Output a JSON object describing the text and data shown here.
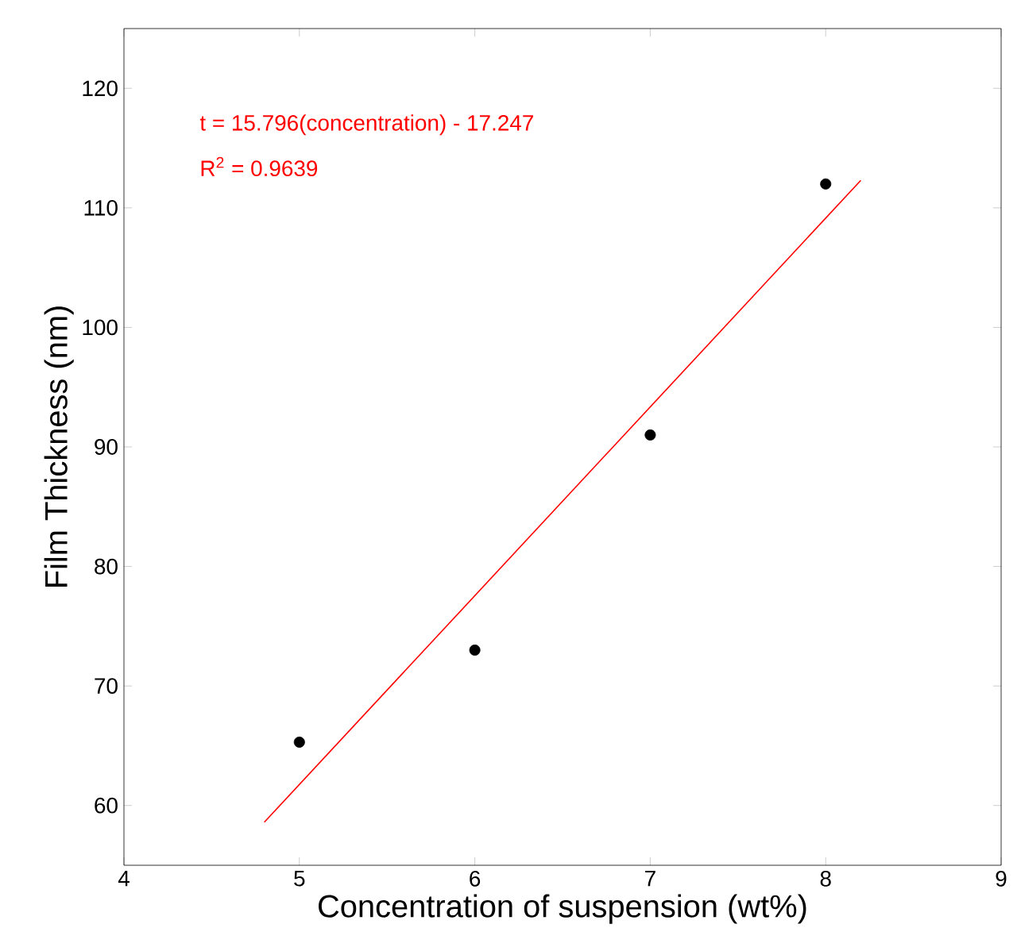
{
  "chart_data": {
    "type": "scatter",
    "xlabel": "Concentration of suspension (wt%)",
    "ylabel": "Film Thickness (nm)",
    "xlim": [
      4,
      9
    ],
    "ylim": [
      55,
      125
    ],
    "xticks": [
      4,
      5,
      6,
      7,
      8,
      9
    ],
    "yticks": [
      60,
      70,
      80,
      90,
      100,
      110,
      120
    ],
    "grid": false,
    "annotations": [
      "t = 15.796(concentration) - 17.247",
      "R$^{2}$ = 0.9639"
    ],
    "series": [
      {
        "color": "#000000",
        "marker": "circle",
        "x": [
          5,
          6,
          7,
          8
        ],
        "values": [
          65.3,
          73,
          91,
          112
        ]
      },
      {
        "type": "line",
        "color": "#ff0000",
        "marker": "none",
        "line_style": "solid",
        "x": [
          4.8,
          8.2
        ],
        "values": [
          58.6,
          112.3
        ]
      }
    ]
  }
}
